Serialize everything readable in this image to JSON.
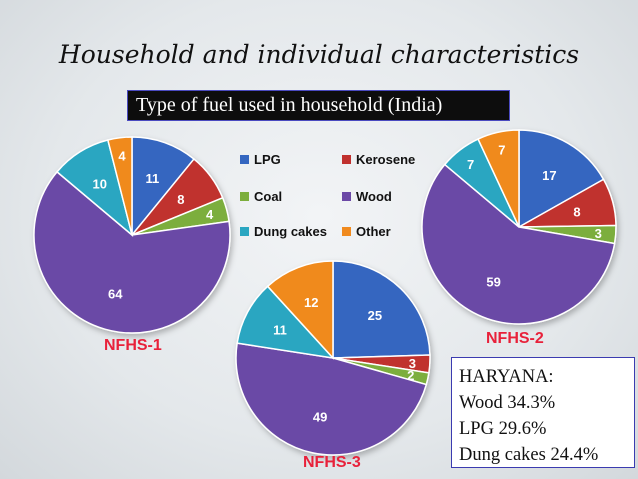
{
  "title": "Household and individual characteristics",
  "subtitle": "Type of fuel used in household (India)",
  "colors": {
    "LPG": "#3466c0",
    "Kerosene": "#c0302e",
    "Coal": "#7cae3c",
    "Wood": "#6b48a6",
    "Dung cakes": "#2aa6c1",
    "Other": "#f08a1e"
  },
  "legend": [
    "LPG",
    "Kerosene",
    "Coal",
    "Wood",
    "Dung cakes",
    "Other"
  ],
  "chart_data": [
    {
      "type": "pie",
      "name": "NFHS-1",
      "categories": [
        "LPG",
        "Kerosene",
        "Coal",
        "Wood",
        "Dung cakes",
        "Other"
      ],
      "values": [
        11,
        8,
        4,
        64,
        10,
        4
      ]
    },
    {
      "type": "pie",
      "name": "NFHS-2",
      "categories": [
        "LPG",
        "Kerosene",
        "Coal",
        "Wood",
        "Dung cakes",
        "Other"
      ],
      "values": [
        17,
        8,
        3,
        59,
        7,
        7
      ]
    },
    {
      "type": "pie",
      "name": "NFHS-3",
      "categories": [
        "LPG",
        "Kerosene",
        "Coal",
        "Wood",
        "Dung cakes",
        "Other"
      ],
      "values": [
        25,
        3,
        2,
        49,
        11,
        12
      ]
    }
  ],
  "haryana": {
    "lines": [
      "HARYANA:",
      "Wood 34.3%",
      "LPG 29.6%",
      "Dung cakes 24.4%"
    ]
  }
}
